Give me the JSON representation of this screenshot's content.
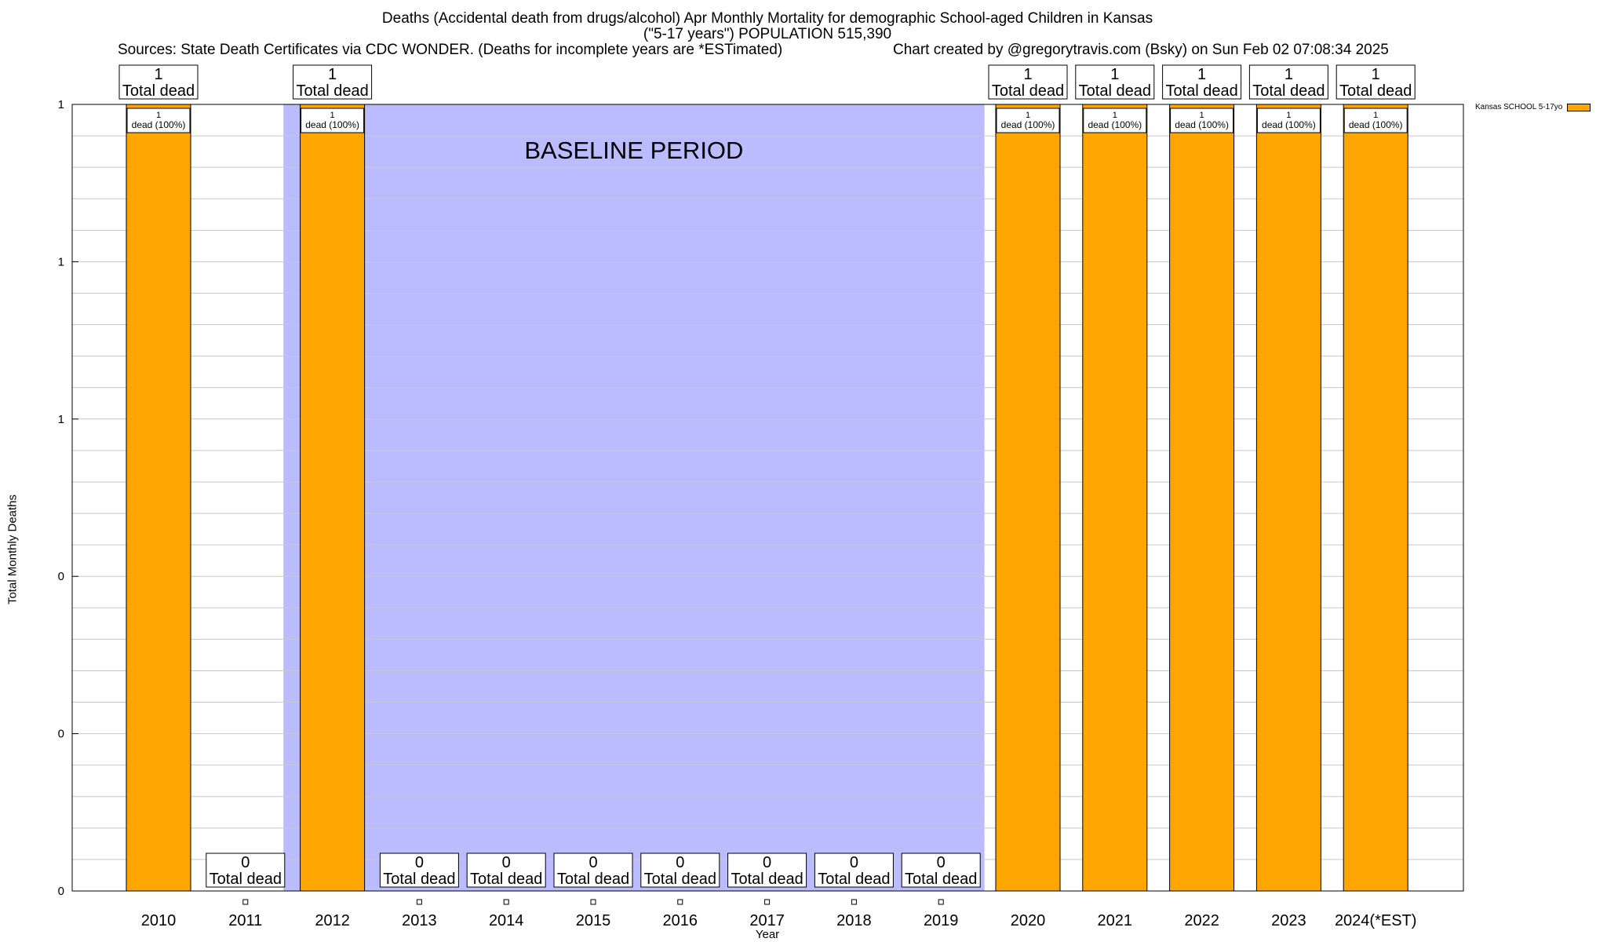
{
  "header": {
    "line1": "Deaths (Accidental death from drugs/alcohol) Apr Monthly Mortality for demographic School-aged Children in Kansas",
    "line2": "(\"5-17 years\") POPULATION 515,390",
    "sources": "Sources: State Death Certificates via CDC WONDER. (Deaths for incomplete years are *ESTimated)",
    "credit": "Chart created by @gregorytravis.com (Bsky) on Sun Feb 02 07:08:34 2025"
  },
  "chart_data": {
    "type": "bar",
    "title": "Deaths (Accidental death from drugs/alcohol) Apr Monthly Mortality for demographic School-aged Children in Kansas",
    "xlabel": "Year",
    "ylabel": "Total Monthly Deaths",
    "ylim": [
      0,
      1
    ],
    "yticks": [
      {
        "value": 0,
        "label": "0"
      },
      {
        "value": 0.2,
        "label": "0"
      },
      {
        "value": 0.4,
        "label": "0"
      },
      {
        "value": 0.6,
        "label": "1"
      },
      {
        "value": 0.8,
        "label": "1"
      },
      {
        "value": 1.0,
        "label": "1"
      }
    ],
    "categories": [
      "2010",
      "2011",
      "2012",
      "2013",
      "2014",
      "2015",
      "2016",
      "2017",
      "2018",
      "2019",
      "2020",
      "2021",
      "2022",
      "2023",
      "2024(*EST)"
    ],
    "series": [
      {
        "name": "Kansas SCHOOL 5-17yo",
        "color": "#FFA500",
        "values": [
          1,
          0,
          1,
          0,
          0,
          0,
          0,
          0,
          0,
          0,
          1,
          1,
          1,
          1,
          1
        ]
      }
    ],
    "total_label_suffix": "Total dead",
    "inner_labels": [
      "1\ndead (100%)",
      "",
      "1\ndead (100%)",
      "",
      "",
      "",
      "",
      "",
      "",
      "",
      "1\ndead (100%)",
      "1\ndead (100%)",
      "1\ndead (100%)",
      "1\ndead (100%)",
      "1\ndead (100%)"
    ],
    "baseline": {
      "label": "BASELINE PERIOD",
      "from": "2012",
      "to": "2019",
      "color": "#BBBBFF"
    },
    "legend": {
      "label": "Kansas SCHOOL 5-17yo",
      "position": "top-right"
    },
    "grid": true
  }
}
